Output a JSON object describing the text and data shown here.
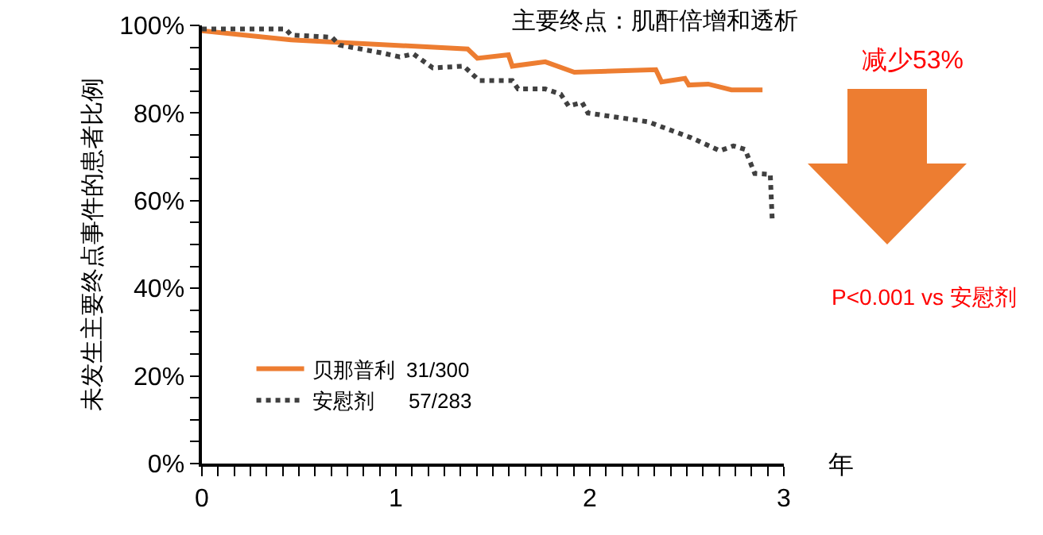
{
  "chart_data": {
    "type": "line",
    "title": "主要终点：肌酐倍增和透析",
    "xlabel": "年",
    "ylabel": "未发生主要终点事件的患者比例",
    "annotations": [
      "减少53%",
      "P<0.001 vs 安慰剂"
    ],
    "series": [
      {
        "name": "贝那普利  31/300",
        "color": "#ed7d31",
        "line_style": "solid",
        "x": [
          0,
          0.46,
          1.37,
          1.42,
          1.58,
          1.6,
          1.77,
          1.92,
          2.34,
          2.37,
          2.49,
          2.51,
          2.61,
          2.73,
          2.89
        ],
        "values": [
          98.8,
          96.7,
          94.6,
          92.5,
          93.3,
          90.7,
          91.7,
          89.3,
          89.9,
          87.1,
          87.9,
          86.4,
          86.6,
          85.3,
          85.3
        ]
      },
      {
        "name": "安慰剂      57/283",
        "color": "#404040",
        "line_style": "dotted",
        "x": [
          0,
          0.43,
          0.46,
          0.67,
          0.71,
          0.93,
          1.02,
          1.09,
          1.19,
          1.35,
          1.43,
          1.6,
          1.63,
          1.77,
          1.85,
          1.89,
          1.96,
          1.99,
          2.3,
          2.52,
          2.67,
          2.74,
          2.8,
          2.85,
          2.93,
          2.94
        ],
        "values": [
          99.2,
          99.2,
          97.8,
          97.3,
          95.5,
          93.7,
          92.8,
          93.5,
          90.3,
          90.7,
          87.4,
          87.4,
          85.5,
          85.5,
          84.3,
          81.6,
          82.4,
          80.0,
          78.0,
          74.4,
          71.4,
          72.5,
          71.7,
          66.2,
          66.0,
          55.7
        ]
      }
    ],
    "xlim": [
      0,
      3
    ],
    "ylim": [
      0,
      100
    ],
    "xticks": [
      0,
      {
        "value": 0.0833,
        "label": null
      },
      {
        "value": 0.1667,
        "label": null
      },
      {
        "value": 0.25,
        "label": null
      },
      {
        "value": 0.3333,
        "label": null
      },
      {
        "value": 0.4167,
        "label": null
      },
      {
        "value": 0.5,
        "label": null
      },
      {
        "value": 0.5833,
        "label": null
      },
      {
        "value": 0.6667,
        "label": null
      },
      {
        "value": 0.75,
        "label": null
      },
      {
        "value": 0.8333,
        "label": null
      },
      {
        "value": 0.9167,
        "label": null
      },
      1,
      {
        "value": 1.0833,
        "label": null
      },
      {
        "value": 1.1667,
        "label": null
      },
      {
        "value": 1.25,
        "label": null
      },
      {
        "value": 1.3333,
        "label": null
      },
      {
        "value": 1.4167,
        "label": null
      },
      {
        "value": 1.5,
        "label": null
      },
      {
        "value": 1.5833,
        "label": null
      },
      {
        "value": 1.6667,
        "label": null
      },
      {
        "value": 1.75,
        "label": null
      },
      {
        "value": 1.8333,
        "label": null
      },
      {
        "value": 1.9167,
        "label": null
      },
      2,
      {
        "value": 2.0833,
        "label": null
      },
      {
        "value": 2.1667,
        "label": null
      },
      {
        "value": 2.25,
        "label": null
      },
      {
        "value": 2.3333,
        "label": null
      },
      {
        "value": 2.4167,
        "label": null
      },
      {
        "value": 2.5,
        "label": null
      },
      {
        "value": 2.5833,
        "label": null
      },
      {
        "value": 2.6667,
        "label": null
      },
      {
        "value": 2.75,
        "label": null
      },
      {
        "value": 2.8333,
        "label": null
      },
      {
        "value": 2.9167,
        "label": null
      },
      3
    ],
    "yticks": [
      {
        "value": 0,
        "label": "0%"
      },
      {
        "value": 5,
        "label": null
      },
      {
        "value": 10,
        "label": null
      },
      {
        "value": 15,
        "label": null
      },
      {
        "value": 20,
        "label": "20%"
      },
      {
        "value": 25,
        "label": null
      },
      {
        "value": 30,
        "label": null
      },
      {
        "value": 35,
        "label": null
      },
      {
        "value": 40,
        "label": "40%"
      },
      {
        "value": 45,
        "label": null
      },
      {
        "value": 50,
        "label": null
      },
      {
        "value": 55,
        "label": null
      },
      {
        "value": 60,
        "label": "60%"
      },
      {
        "value": 65,
        "label": null
      },
      {
        "value": 70,
        "label": null
      },
      {
        "value": 75,
        "label": null
      },
      {
        "value": 80,
        "label": "80%"
      },
      {
        "value": 85,
        "label": null
      },
      {
        "value": 90,
        "label": null
      },
      {
        "value": 95,
        "label": null
      },
      {
        "value": 100,
        "label": "100%"
      }
    ],
    "grid": false,
    "legend": "bottom left",
    "marker": "none"
  }
}
